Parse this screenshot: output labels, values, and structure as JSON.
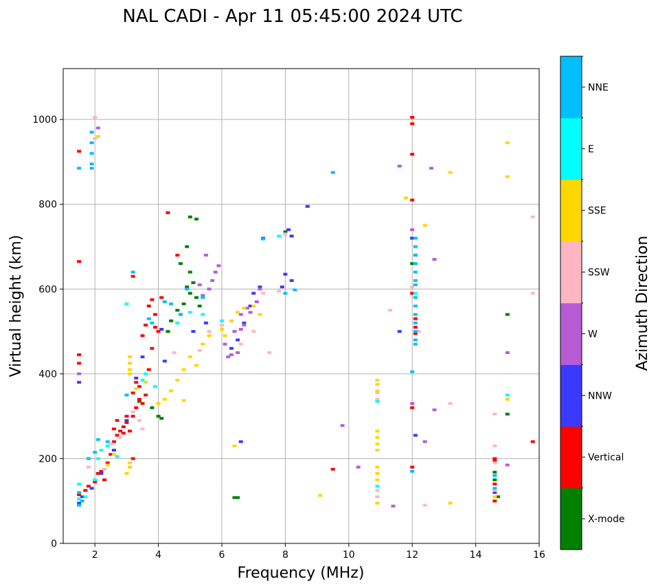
{
  "chart_data": {
    "type": "scatter",
    "title": "NAL CADI - Apr 11 05:45:00 2024 UTC",
    "xlabel": "Frequency (MHz)",
    "ylabel": "Virtual height (km)",
    "xlim": [
      1.0,
      16.0
    ],
    "ylim": [
      0,
      1120
    ],
    "xticks": [
      2,
      4,
      6,
      8,
      10,
      12,
      14,
      16
    ],
    "yticks": [
      0,
      200,
      400,
      600,
      800,
      1000
    ],
    "grid": true,
    "colorbar": {
      "label": "Azimuth Direction",
      "categories": [
        {
          "name": "X-mode",
          "color": "#008000"
        },
        {
          "name": "Vertical",
          "color": "#ff0000"
        },
        {
          "name": "NNW",
          "color": "#3a3aff"
        },
        {
          "name": "W",
          "color": "#b85cd6"
        },
        {
          "name": "SSW",
          "color": "#ffb6c1"
        },
        {
          "name": "SSE",
          "color": "#ffd700"
        },
        {
          "name": "E",
          "color": "#00ffff"
        },
        {
          "name": "NNE",
          "color": "#00bfff"
        }
      ]
    },
    "series": [
      {
        "name": "X-mode",
        "points": [
          [
            3.4,
            335
          ],
          [
            3.8,
            320
          ],
          [
            4.0,
            300
          ],
          [
            4.1,
            295
          ],
          [
            4.4,
            525
          ],
          [
            4.6,
            550
          ],
          [
            4.7,
            540
          ],
          [
            4.8,
            565
          ],
          [
            4.9,
            605
          ],
          [
            5.0,
            640
          ],
          [
            5.1,
            615
          ],
          [
            5.0,
            590
          ],
          [
            5.2,
            580
          ],
          [
            5.3,
            560
          ],
          [
            4.7,
            660
          ],
          [
            4.9,
            700
          ],
          [
            5.0,
            770
          ],
          [
            5.2,
            765
          ],
          [
            4.3,
            500
          ],
          [
            6.5,
            108
          ],
          [
            6.4,
            108
          ],
          [
            14.6,
            168
          ],
          [
            14.6,
            150
          ],
          [
            14.7,
            110
          ],
          [
            15.0,
            305
          ],
          [
            15.0,
            540
          ],
          [
            12.0,
            660
          ],
          [
            8.0,
            735
          ]
        ]
      },
      {
        "name": "Vertical",
        "points": [
          [
            1.5,
            115
          ],
          [
            1.7,
            125
          ],
          [
            1.8,
            135
          ],
          [
            2.0,
            145
          ],
          [
            2.1,
            165
          ],
          [
            2.2,
            170
          ],
          [
            2.3,
            150
          ],
          [
            2.4,
            190
          ],
          [
            2.5,
            210
          ],
          [
            2.6,
            240
          ],
          [
            2.7,
            255
          ],
          [
            2.8,
            265
          ],
          [
            2.9,
            275
          ],
          [
            3.0,
            285
          ],
          [
            3.1,
            265
          ],
          [
            3.2,
            300
          ],
          [
            3.3,
            320
          ],
          [
            3.4,
            340
          ],
          [
            3.5,
            330
          ],
          [
            3.6,
            350
          ],
          [
            3.2,
            355
          ],
          [
            3.3,
            380
          ],
          [
            3.4,
            370
          ],
          [
            2.6,
            270
          ],
          [
            2.7,
            290
          ],
          [
            2.9,
            260
          ],
          [
            3.0,
            300
          ],
          [
            3.2,
            200
          ],
          [
            3.7,
            410
          ],
          [
            3.8,
            460
          ],
          [
            3.9,
            510
          ],
          [
            4.0,
            500
          ],
          [
            3.6,
            515
          ],
          [
            3.5,
            490
          ],
          [
            3.7,
            560
          ],
          [
            3.8,
            575
          ],
          [
            3.9,
            540
          ],
          [
            4.1,
            580
          ],
          [
            4.3,
            780
          ],
          [
            3.2,
            630
          ],
          [
            4.6,
            680
          ],
          [
            1.5,
            665
          ],
          [
            1.5,
            445
          ],
          [
            1.5,
            425
          ],
          [
            1.5,
            925
          ],
          [
            12.0,
            1005
          ],
          [
            12.0,
            990
          ],
          [
            12.0,
            918
          ],
          [
            12.0,
            810
          ],
          [
            12.0,
            590
          ],
          [
            12.1,
            530
          ],
          [
            12.1,
            510
          ],
          [
            12.1,
            495
          ],
          [
            12.0,
            180
          ],
          [
            12.0,
            320
          ],
          [
            9.5,
            175
          ],
          [
            14.6,
            200
          ],
          [
            14.6,
            195
          ],
          [
            14.6,
            140
          ],
          [
            14.6,
            100
          ],
          [
            15.8,
            240
          ],
          [
            12.1,
            680
          ],
          [
            12.0,
            720
          ]
        ]
      },
      {
        "name": "NNW",
        "points": [
          [
            1.5,
            95
          ],
          [
            1.6,
            110
          ],
          [
            1.9,
            130
          ],
          [
            2.2,
            165
          ],
          [
            2.6,
            220
          ],
          [
            3.0,
            290
          ],
          [
            3.3,
            390
          ],
          [
            3.5,
            440
          ],
          [
            4.1,
            505
          ],
          [
            4.2,
            430
          ],
          [
            5.1,
            500
          ],
          [
            5.5,
            520
          ],
          [
            6.3,
            460
          ],
          [
            6.5,
            480
          ],
          [
            6.7,
            520
          ],
          [
            6.9,
            560
          ],
          [
            7.0,
            590
          ],
          [
            7.2,
            605
          ],
          [
            7.3,
            720
          ],
          [
            8.1,
            740
          ],
          [
            8.2,
            725
          ],
          [
            8.2,
            620
          ],
          [
            8.7,
            795
          ],
          [
            7.9,
            605
          ],
          [
            12.0,
            720
          ],
          [
            11.6,
            500
          ],
          [
            12.1,
            255
          ],
          [
            14.6,
            120
          ],
          [
            6.6,
            240
          ],
          [
            1.5,
            380
          ],
          [
            8.0,
            635
          ]
        ]
      },
      {
        "name": "W",
        "points": [
          [
            5.4,
            585
          ],
          [
            5.6,
            600
          ],
          [
            5.7,
            620
          ],
          [
            5.8,
            640
          ],
          [
            5.9,
            655
          ],
          [
            5.5,
            680
          ],
          [
            5.3,
            610
          ],
          [
            6.1,
            470
          ],
          [
            6.2,
            440
          ],
          [
            6.3,
            445
          ],
          [
            6.5,
            450
          ],
          [
            6.6,
            505
          ],
          [
            6.7,
            515
          ],
          [
            6.8,
            555
          ],
          [
            6.9,
            545
          ],
          [
            7.1,
            570
          ],
          [
            7.2,
            600
          ],
          [
            6.4,
            500
          ],
          [
            6.6,
            540
          ],
          [
            12.0,
            740
          ],
          [
            11.6,
            890
          ],
          [
            12.6,
            885
          ],
          [
            12.7,
            670
          ],
          [
            12.7,
            315
          ],
          [
            12.4,
            240
          ],
          [
            11.4,
            88
          ],
          [
            10.3,
            180
          ],
          [
            9.8,
            278
          ],
          [
            15.0,
            450
          ],
          [
            15.0,
            185
          ],
          [
            12.0,
            330
          ],
          [
            1.5,
            400
          ],
          [
            2.1,
            980
          ]
        ]
      },
      {
        "name": "SSW",
        "points": [
          [
            2.0,
            1005
          ],
          [
            2.0,
            955
          ],
          [
            1.8,
            180
          ],
          [
            2.3,
            175
          ],
          [
            2.5,
            235
          ],
          [
            2.8,
            250
          ],
          [
            3.2,
            310
          ],
          [
            3.4,
            290
          ],
          [
            3.5,
            270
          ],
          [
            4.5,
            450
          ],
          [
            5.3,
            455
          ],
          [
            5.6,
            500
          ],
          [
            6.0,
            515
          ],
          [
            6.3,
            525
          ],
          [
            6.6,
            470
          ],
          [
            7.0,
            500
          ],
          [
            7.3,
            590
          ],
          [
            7.5,
            450
          ],
          [
            7.8,
            595
          ],
          [
            8.0,
            730
          ],
          [
            10.9,
            340
          ],
          [
            10.9,
            355
          ],
          [
            10.9,
            125
          ],
          [
            10.9,
            110
          ],
          [
            11.3,
            550
          ],
          [
            12.0,
            605
          ],
          [
            12.1,
            540
          ],
          [
            12.2,
            500
          ],
          [
            12.4,
            90
          ],
          [
            13.2,
            330
          ],
          [
            14.6,
            230
          ],
          [
            14.6,
            190
          ],
          [
            14.6,
            125
          ],
          [
            14.6,
            305
          ],
          [
            15.8,
            770
          ],
          [
            15.8,
            590
          ]
        ]
      },
      {
        "name": "SSE",
        "points": [
          [
            3.1,
            440
          ],
          [
            3.1,
            425
          ],
          [
            3.1,
            410
          ],
          [
            3.1,
            400
          ],
          [
            3.1,
            190
          ],
          [
            3.1,
            180
          ],
          [
            3.0,
            165
          ],
          [
            2.4,
            185
          ],
          [
            2.6,
            210
          ],
          [
            3.3,
            365
          ],
          [
            3.6,
            380
          ],
          [
            4.2,
            340
          ],
          [
            4.4,
            360
          ],
          [
            4.6,
            385
          ],
          [
            4.8,
            410
          ],
          [
            5.0,
            440
          ],
          [
            5.2,
            420
          ],
          [
            5.4,
            470
          ],
          [
            5.6,
            490
          ],
          [
            6.0,
            505
          ],
          [
            6.1,
            490
          ],
          [
            6.3,
            525
          ],
          [
            6.5,
            545
          ],
          [
            6.7,
            555
          ],
          [
            7.0,
            560
          ],
          [
            7.2,
            540
          ],
          [
            4.0,
            330
          ],
          [
            4.8,
            337
          ],
          [
            6.4,
            230
          ],
          [
            9.1,
            113
          ],
          [
            10.9,
            385
          ],
          [
            10.9,
            375
          ],
          [
            10.9,
            360
          ],
          [
            10.9,
            265
          ],
          [
            10.9,
            250
          ],
          [
            10.9,
            235
          ],
          [
            10.9,
            220
          ],
          [
            10.9,
            180
          ],
          [
            10.9,
            165
          ],
          [
            10.9,
            150
          ],
          [
            10.9,
            95
          ],
          [
            11.8,
            815
          ],
          [
            12.4,
            750
          ],
          [
            13.2,
            875
          ],
          [
            13.2,
            95
          ],
          [
            15.0,
            945
          ],
          [
            15.0,
            865
          ],
          [
            15.0,
            340
          ],
          [
            14.6,
            110
          ],
          [
            2.1,
            960
          ]
        ]
      },
      {
        "name": "E",
        "points": [
          [
            1.5,
            105
          ],
          [
            1.7,
            110
          ],
          [
            2.0,
            150
          ],
          [
            2.1,
            200
          ],
          [
            2.2,
            220
          ],
          [
            2.4,
            230
          ],
          [
            2.7,
            205
          ],
          [
            3.0,
            565
          ],
          [
            3.6,
            400
          ],
          [
            3.5,
            385
          ],
          [
            3.9,
            370
          ],
          [
            4.6,
            520
          ],
          [
            5.0,
            545
          ],
          [
            5.4,
            540
          ],
          [
            6.0,
            525
          ],
          [
            10.9,
            335
          ],
          [
            10.9,
            135
          ],
          [
            12.1,
            590
          ],
          [
            15.0,
            350
          ],
          [
            7.8,
            725
          ],
          [
            1.5,
            140
          ]
        ]
      },
      {
        "name": "NNE",
        "points": [
          [
            1.5,
            90
          ],
          [
            1.6,
            100
          ],
          [
            1.8,
            200
          ],
          [
            2.0,
            215
          ],
          [
            2.1,
            245
          ],
          [
            2.4,
            240
          ],
          [
            3.0,
            350
          ],
          [
            3.2,
            640
          ],
          [
            3.7,
            530
          ],
          [
            3.8,
            520
          ],
          [
            4.2,
            570
          ],
          [
            4.4,
            565
          ],
          [
            4.7,
            540
          ],
          [
            4.9,
            600
          ],
          [
            5.4,
            580
          ],
          [
            7.3,
            718
          ],
          [
            8.0,
            590
          ],
          [
            8.3,
            598
          ],
          [
            9.5,
            875
          ],
          [
            1.9,
            970
          ],
          [
            1.9,
            945
          ],
          [
            1.9,
            920
          ],
          [
            1.9,
            895
          ],
          [
            1.9,
            885
          ],
          [
            1.5,
            885
          ],
          [
            12.0,
            405
          ],
          [
            12.0,
            170
          ],
          [
            12.1,
            720
          ],
          [
            12.1,
            700
          ],
          [
            12.1,
            680
          ],
          [
            12.1,
            660
          ],
          [
            12.1,
            640
          ],
          [
            12.1,
            620
          ],
          [
            12.1,
            610
          ],
          [
            12.1,
            580
          ],
          [
            12.1,
            560
          ],
          [
            12.1,
            540
          ],
          [
            12.1,
            520
          ],
          [
            12.1,
            500
          ],
          [
            12.1,
            480
          ],
          [
            12.1,
            470
          ],
          [
            14.6,
            130
          ],
          [
            14.6,
            160
          ],
          [
            1.5,
            120
          ]
        ]
      }
    ]
  }
}
